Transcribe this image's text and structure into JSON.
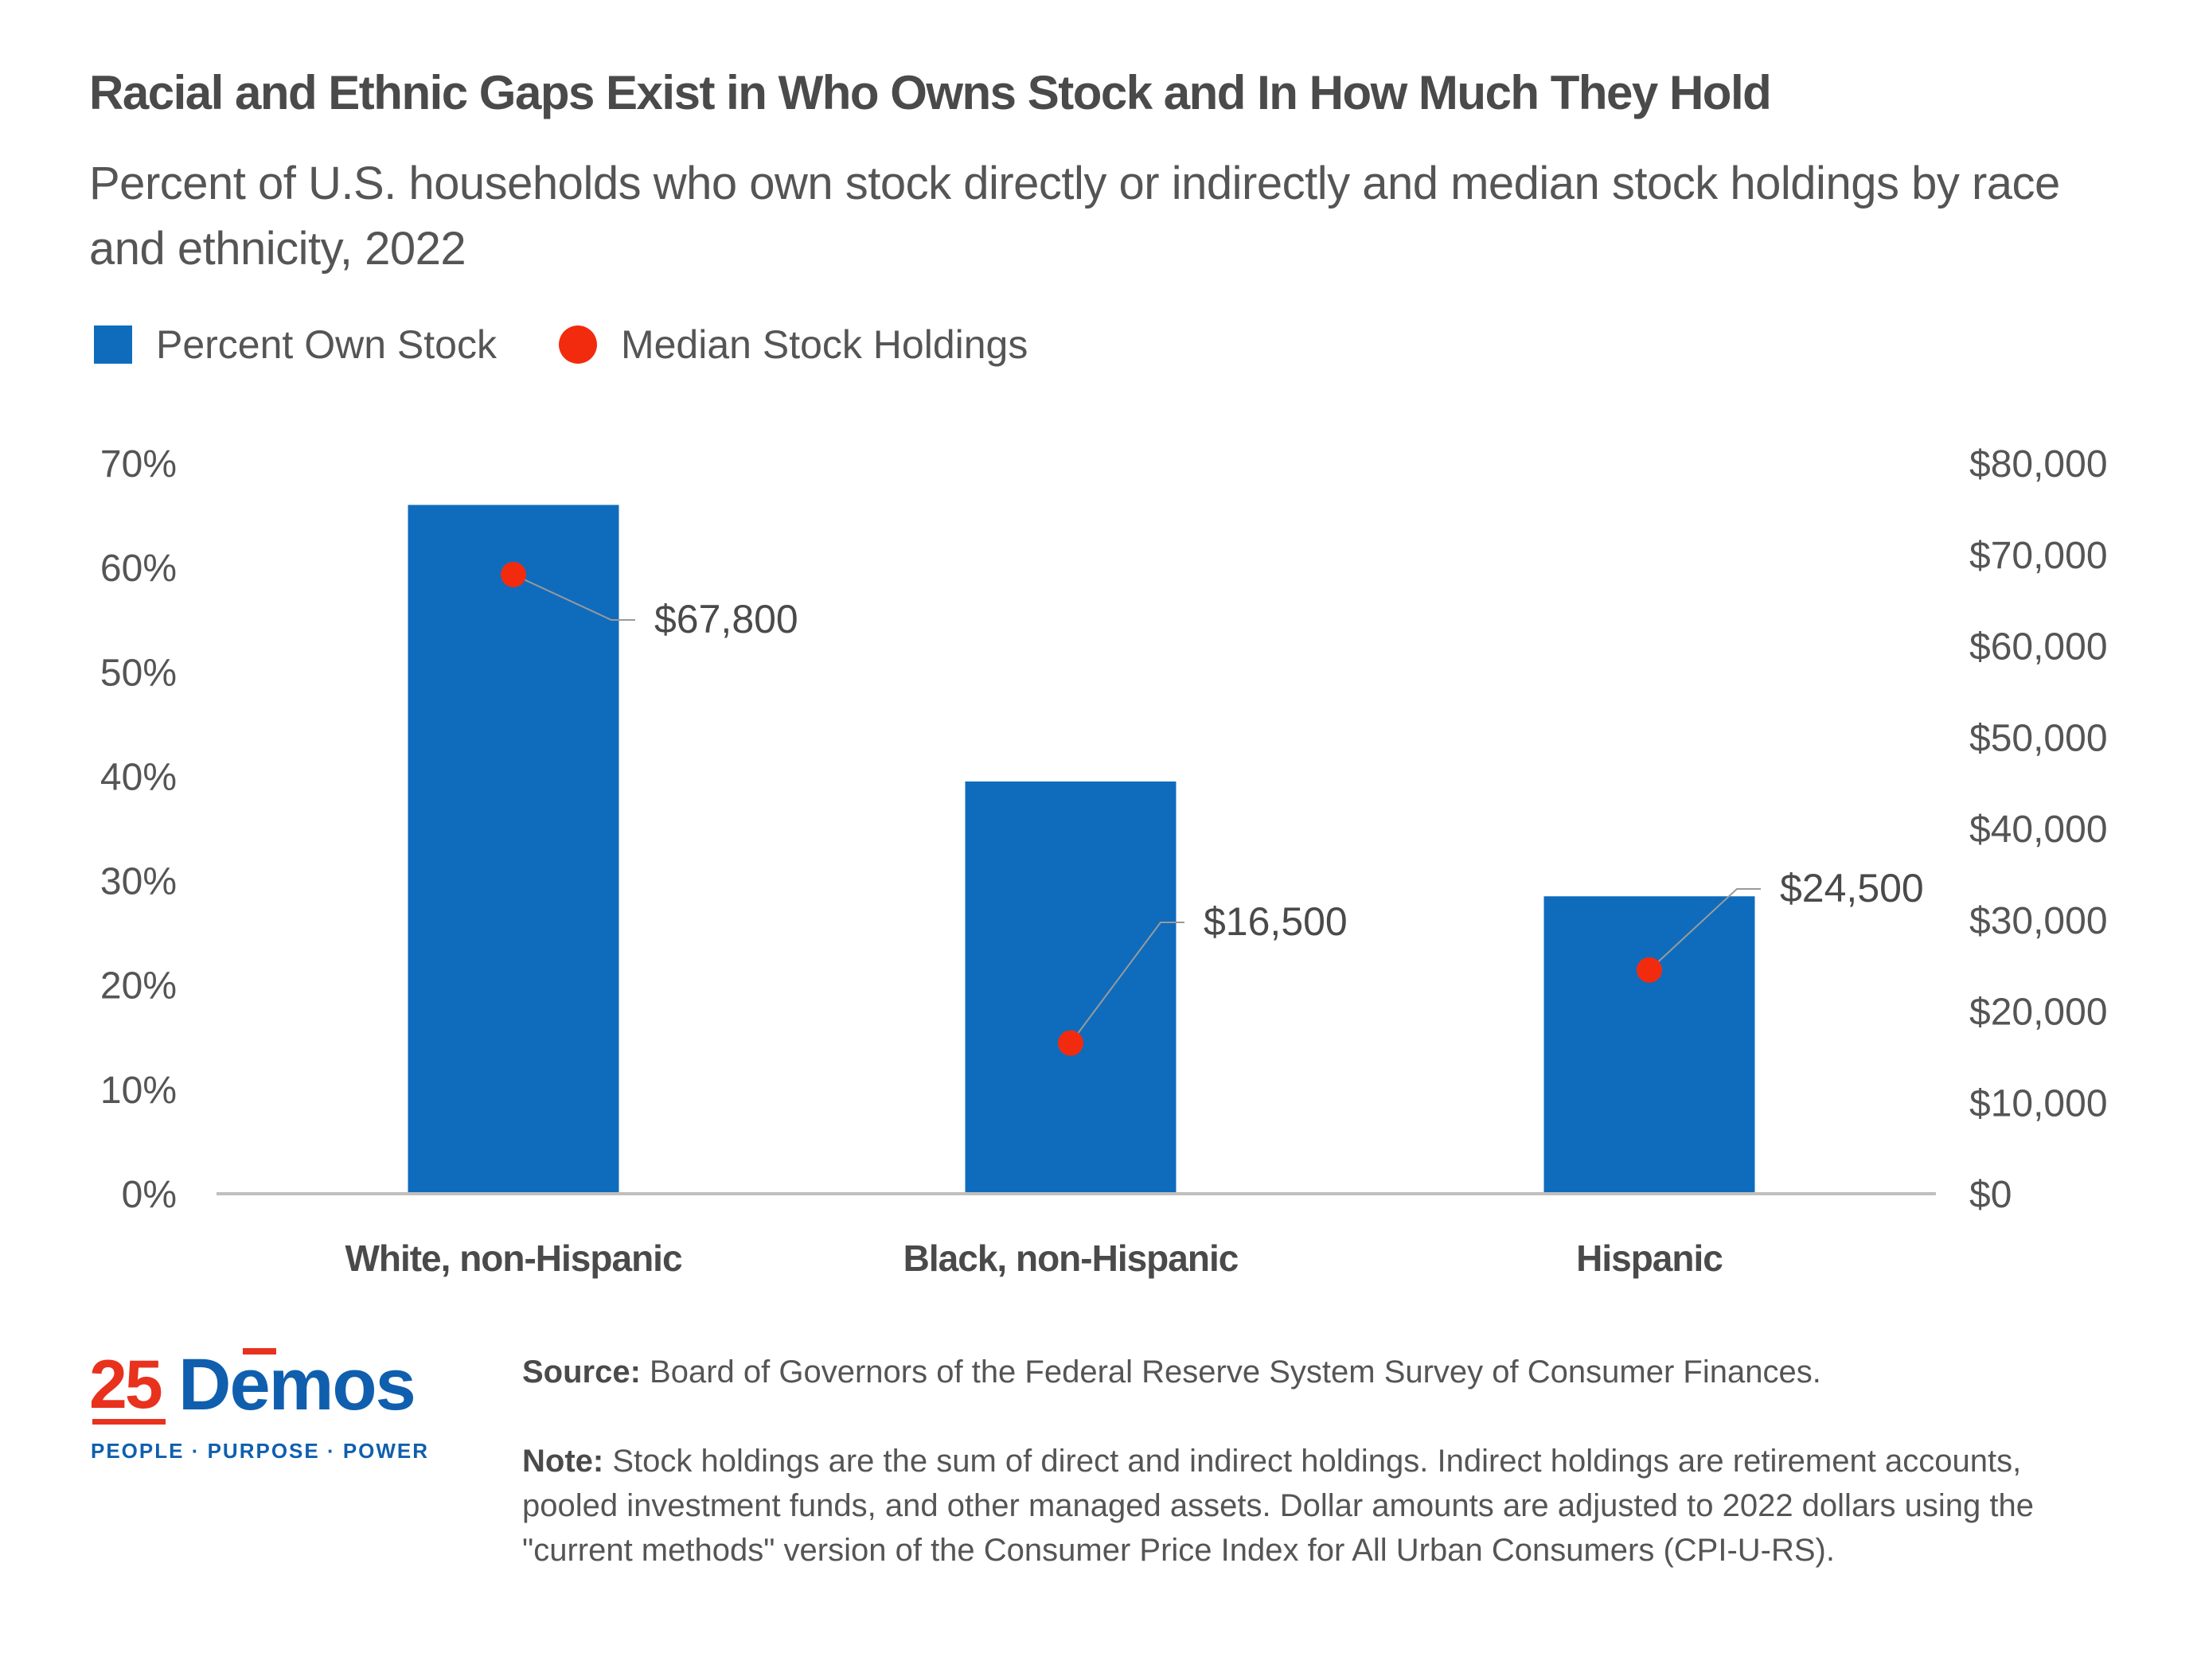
{
  "chart_data": {
    "type": "bar",
    "title": "Racial and Ethnic Gaps Exist in Who Owns Stock and In How Much They Hold",
    "subtitle": "Percent of U.S. households who own stock directly or indirectly and median stock holdings by race and ethnicity, 2022",
    "categories": [
      "White, non-Hispanic",
      "Black, non-Hispanic",
      "Hispanic"
    ],
    "series": [
      {
        "name": "Percent Own Stock",
        "type": "bar",
        "axis": "left",
        "color": "#0f6cbd",
        "values": [
          66,
          39.5,
          28.5
        ]
      },
      {
        "name": "Median Stock Holdings",
        "type": "scatter",
        "axis": "right",
        "color": "#f22b0f",
        "values": [
          67800,
          16500,
          24500
        ],
        "labels": [
          "$67,800",
          "$16,500",
          "$24,500"
        ]
      }
    ],
    "y_left": {
      "min": 0,
      "max": 70,
      "ticks": [
        "0%",
        "10%",
        "20%",
        "30%",
        "40%",
        "50%",
        "60%",
        "70%"
      ]
    },
    "y_right": {
      "min": 0,
      "max": 80000,
      "ticks": [
        "$0",
        "$10,000",
        "$20,000",
        "$30,000",
        "$40,000",
        "$50,000",
        "$60,000",
        "$70,000",
        "$80,000"
      ]
    },
    "grid": false,
    "legend_position": "top-left"
  },
  "legend": {
    "bar_label": "Percent Own Stock",
    "dot_label": "Median Stock Holdings"
  },
  "footer": {
    "logo_number": "25",
    "logo_name": "Demos",
    "logo_tagline": "PEOPLE · PURPOSE · POWER",
    "source_label": "Source:",
    "source_text": " Board of Governors of the Federal Reserve System Survey of Consumer Finances.",
    "note_label": "Note:",
    "note_text": " Stock holdings are the sum of direct and indirect holdings. Indirect holdings are retirement accounts, pooled investment funds, and other managed assets. Dollar amounts are adjusted to 2022 dollars using the \"current methods\" version of the Consumer Price Index for All Urban Consumers (CPI-U-RS)."
  }
}
